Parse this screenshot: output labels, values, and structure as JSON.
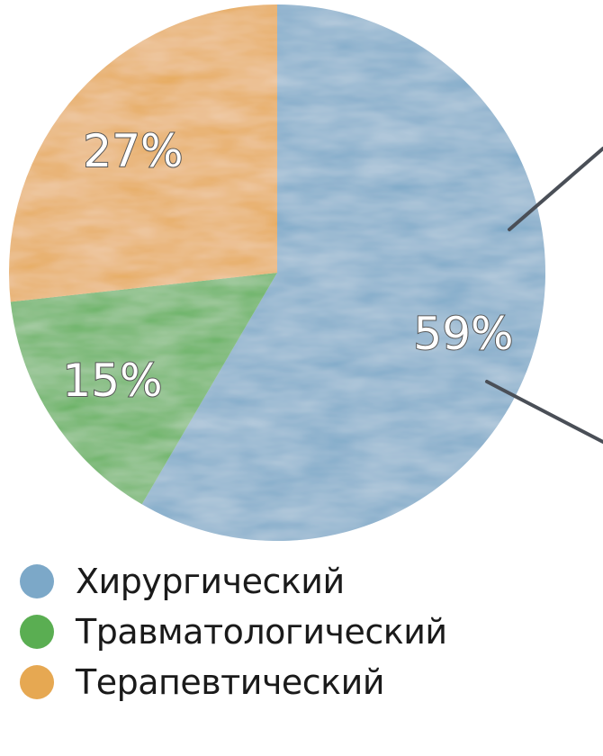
{
  "chart_data": {
    "type": "pie",
    "categories": [
      "Хирургический",
      "Травматологический",
      "Терапевтический"
    ],
    "values": [
      59,
      15,
      27
    ],
    "value_labels": [
      "59%",
      "15%",
      "27%"
    ],
    "colors": [
      "#7ca8c8",
      "#5aae52",
      "#e6a852"
    ],
    "start_angle_deg": 0,
    "direction": "clockwise",
    "legend_position": "bottom-left",
    "callout_lines": true
  }
}
